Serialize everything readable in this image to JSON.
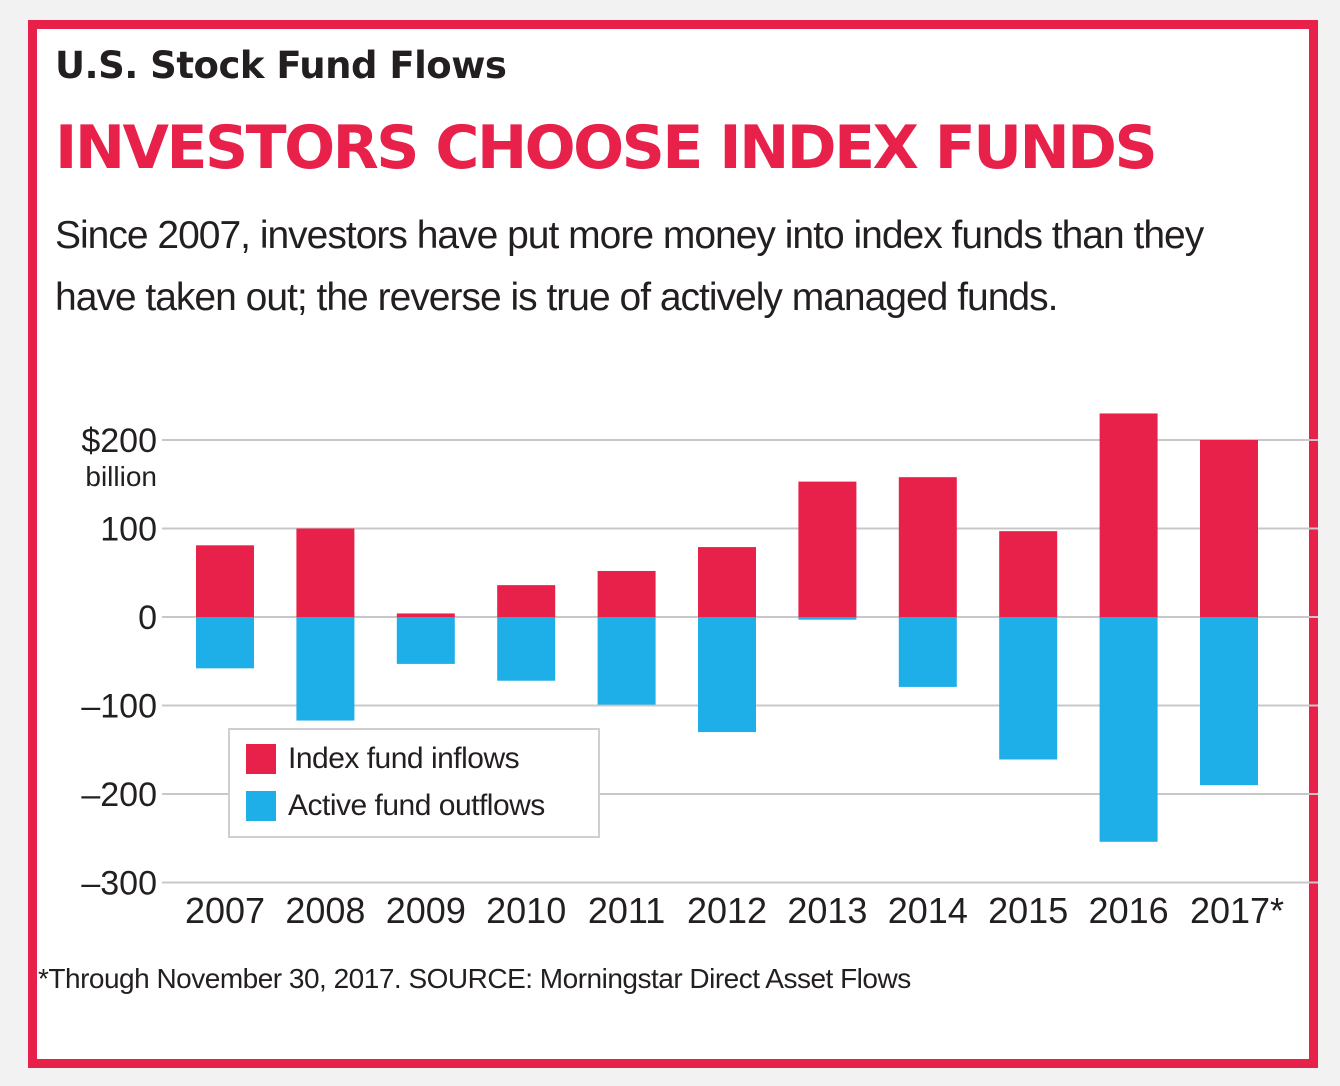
{
  "header": {
    "kicker": "U.S. Stock Fund Flows",
    "headline": "INVESTORS CHOOSE INDEX FUNDS",
    "dek": "Since 2007, investors have put more money into index funds than they have taken out; the reverse is  true of actively managed funds."
  },
  "footnote": "*Through November 30, 2017.  SOURCE: Morningstar Direct Asset Flows",
  "colors": {
    "frame": "#e8214a",
    "inflow": "#e8214a",
    "outflow": "#1eaee8",
    "grid": "#c8c8c8"
  },
  "chart_data": {
    "type": "bar",
    "categories": [
      "2007",
      "2008",
      "2009",
      "2010",
      "2011",
      "2012",
      "2013",
      "2014",
      "2015",
      "2016",
      "2017*"
    ],
    "series": [
      {
        "name": "Index fund inflows",
        "values": [
          81,
          100,
          4,
          36,
          52,
          79,
          153,
          158,
          97,
          230,
          200
        ]
      },
      {
        "name": "Active fund outflows",
        "values": [
          -58,
          -117,
          -53,
          -72,
          -99,
          -130,
          -3,
          -79,
          -161,
          -254,
          -190
        ]
      }
    ],
    "yticks": [
      200,
      100,
      0,
      -100,
      -200,
      -300
    ],
    "ytick_labels": [
      "$200",
      "100",
      "0",
      "–100",
      "–200",
      "–300"
    ],
    "yunit": "billion",
    "ylim": [
      -300,
      200
    ],
    "stacked_around_zero": true,
    "grid": true,
    "legend": "bottom-left"
  }
}
